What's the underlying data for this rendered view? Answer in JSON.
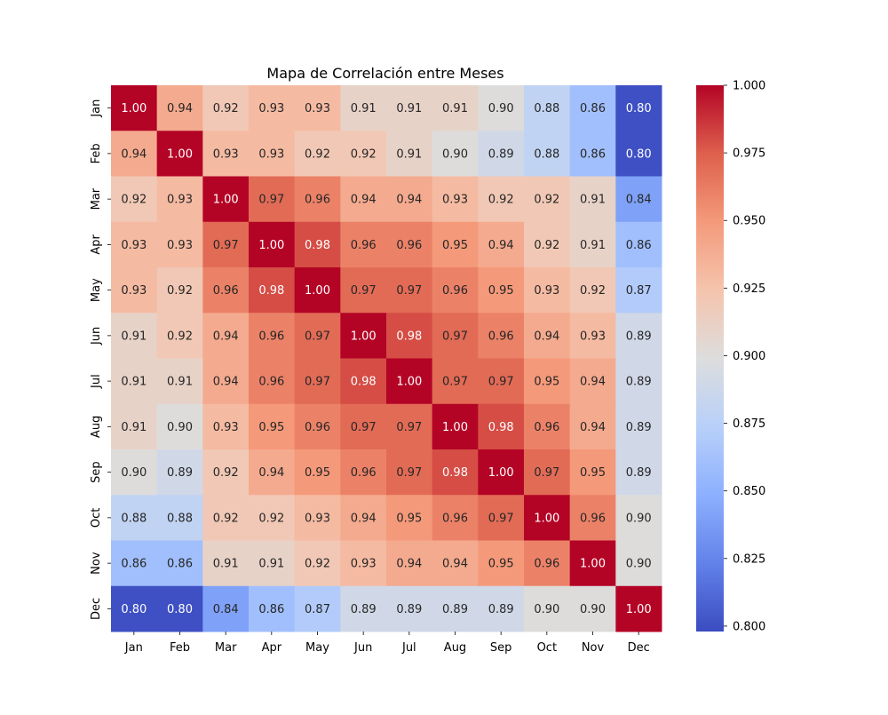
{
  "chart_data": {
    "type": "heatmap",
    "title": "Mapa de Correlación entre Meses",
    "xlabel": "",
    "ylabel": "",
    "x_categories": [
      "Jan",
      "Feb",
      "Mar",
      "Apr",
      "May",
      "Jun",
      "Jul",
      "Aug",
      "Sep",
      "Oct",
      "Nov",
      "Dec"
    ],
    "y_categories": [
      "Jan",
      "Feb",
      "Mar",
      "Apr",
      "May",
      "Jun",
      "Jul",
      "Aug",
      "Sep",
      "Oct",
      "Nov",
      "Dec"
    ],
    "values": [
      [
        1.0,
        0.94,
        0.92,
        0.93,
        0.93,
        0.91,
        0.91,
        0.91,
        0.9,
        0.88,
        0.86,
        0.8
      ],
      [
        0.94,
        1.0,
        0.93,
        0.93,
        0.92,
        0.92,
        0.91,
        0.9,
        0.89,
        0.88,
        0.86,
        0.8
      ],
      [
        0.92,
        0.93,
        1.0,
        0.97,
        0.96,
        0.94,
        0.94,
        0.93,
        0.92,
        0.92,
        0.91,
        0.84
      ],
      [
        0.93,
        0.93,
        0.97,
        1.0,
        0.98,
        0.96,
        0.96,
        0.95,
        0.94,
        0.92,
        0.91,
        0.86
      ],
      [
        0.93,
        0.92,
        0.96,
        0.98,
        1.0,
        0.97,
        0.97,
        0.96,
        0.95,
        0.93,
        0.92,
        0.87
      ],
      [
        0.91,
        0.92,
        0.94,
        0.96,
        0.97,
        1.0,
        0.98,
        0.97,
        0.96,
        0.94,
        0.93,
        0.89
      ],
      [
        0.91,
        0.91,
        0.94,
        0.96,
        0.97,
        0.98,
        1.0,
        0.97,
        0.97,
        0.95,
        0.94,
        0.89
      ],
      [
        0.91,
        0.9,
        0.93,
        0.95,
        0.96,
        0.97,
        0.97,
        1.0,
        0.98,
        0.96,
        0.94,
        0.89
      ],
      [
        0.9,
        0.89,
        0.92,
        0.94,
        0.95,
        0.96,
        0.97,
        0.98,
        1.0,
        0.97,
        0.95,
        0.89
      ],
      [
        0.88,
        0.88,
        0.92,
        0.92,
        0.93,
        0.94,
        0.95,
        0.96,
        0.97,
        1.0,
        0.96,
        0.9
      ],
      [
        0.86,
        0.86,
        0.91,
        0.91,
        0.92,
        0.93,
        0.94,
        0.94,
        0.95,
        0.96,
        1.0,
        0.9
      ],
      [
        0.8,
        0.8,
        0.84,
        0.86,
        0.87,
        0.89,
        0.89,
        0.89,
        0.89,
        0.9,
        0.9,
        1.0
      ]
    ],
    "colormap": "coolwarm",
    "value_range": [
      0.798,
      1.0
    ],
    "annotations": true,
    "colorbar": {
      "ticks": [
        0.8,
        0.825,
        0.85,
        0.875,
        0.9,
        0.925,
        0.95,
        0.975,
        1.0
      ],
      "tick_labels": [
        "0.800",
        "0.825",
        "0.850",
        "0.875",
        "0.900",
        "0.925",
        "0.950",
        "0.975",
        "1.000"
      ]
    },
    "grid": false,
    "legend": "colorbar-right"
  }
}
